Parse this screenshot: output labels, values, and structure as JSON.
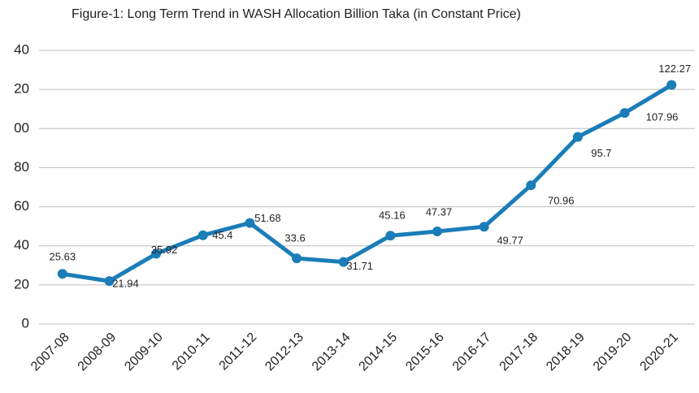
{
  "chart_data": {
    "type": "line",
    "title": "Figure-1: Long Term Trend in WASH Allocation Billion Taka (in Constant Price)",
    "categories": [
      "2007-08",
      "2008-09",
      "2009-10",
      "2010-11",
      "2011-12",
      "2012-13",
      "2013-14",
      "2014-15",
      "2015-16",
      "2016-17",
      "2017-18",
      "2018-19",
      "2019-20",
      "2020-21"
    ],
    "series": [
      {
        "color": "#1a7db8",
        "values": [
          25.63,
          21.94,
          35.92,
          45.4,
          51.68,
          33.6,
          31.71,
          45.16,
          47.37,
          49.77,
          70.96,
          95.7,
          107.96,
          122.27
        ]
      }
    ],
    "ylim": [
      0,
      140
    ],
    "yticks": [
      0,
      20,
      40,
      60,
      80,
      {
        "value": 100,
        "label": "00"
      },
      {
        "value": 120,
        "label": "20"
      },
      {
        "value": 140,
        "label": "40"
      }
    ],
    "grid": true
  }
}
